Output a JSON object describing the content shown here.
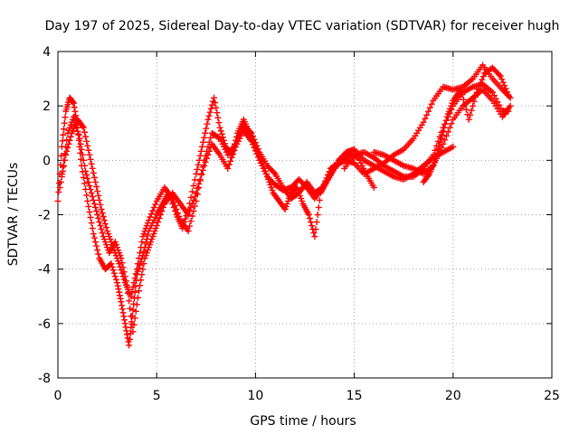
{
  "chart_data": {
    "type": "scatter",
    "title": "Day 197 of 2025, Sidereal Day-to-day VTEC variation (SDTVAR) for receiver hugh",
    "xlabel": "GPS time / hours",
    "ylabel": "SDTVAR / TECUs",
    "xlim": [
      0,
      25
    ],
    "ylim": [
      -8,
      4
    ],
    "xticks": [
      0,
      5,
      10,
      15,
      20,
      25
    ],
    "yticks": [
      -8,
      -6,
      -4,
      -2,
      0,
      2,
      4
    ],
    "xtick_labels": [
      "0",
      "5",
      "10",
      "15",
      "20",
      "25"
    ],
    "ytick_labels": [
      "-8",
      "-6",
      "-4",
      "-2",
      "0",
      "2",
      "4"
    ],
    "grid": true,
    "marker": "+",
    "color": "#ff0000",
    "series": [
      {
        "name": "track-1",
        "x": [
          0.0,
          0.2,
          0.4,
          0.6,
          0.8,
          1.0,
          1.2,
          1.5,
          1.8,
          2.1,
          2.4,
          2.7,
          3.0,
          3.2,
          3.4,
          3.6,
          3.8,
          4.0,
          4.3,
          4.6,
          5.0,
          5.3,
          5.6,
          6.0,
          6.3,
          6.6,
          7.0,
          7.3,
          7.6,
          7.9,
          8.2,
          8.5,
          8.8,
          9.1,
          9.4,
          9.7,
          10.0,
          10.3,
          10.6,
          10.9,
          11.2,
          11.5,
          11.8,
          12.1,
          12.4,
          12.7,
          13.0,
          13.3,
          13.6,
          14.0,
          14.4,
          14.8,
          15.2,
          15.6,
          16.0
        ],
        "y": [
          -1.5,
          0.5,
          1.8,
          2.3,
          2.1,
          1.2,
          -0.2,
          -1.5,
          -2.7,
          -3.6,
          -4.0,
          -3.8,
          -4.5,
          -5.2,
          -6.0,
          -6.8,
          -5.5,
          -4.2,
          -3.5,
          -2.6,
          -2.0,
          -1.6,
          -1.2,
          -2.0,
          -2.5,
          -1.8,
          -0.5,
          0.5,
          1.5,
          2.3,
          1.2,
          0.5,
          0.2,
          1.0,
          1.5,
          1.0,
          0.5,
          0.0,
          -0.6,
          -1.2,
          -1.5,
          -1.8,
          -1.2,
          -1.0,
          -1.6,
          -2.0,
          -2.8,
          -1.2,
          -0.8,
          -0.3,
          0.0,
          0.2,
          0.1,
          -0.5,
          -1.0
        ]
      },
      {
        "name": "track-2",
        "x": [
          0.1,
          0.4,
          0.7,
          1.0,
          1.3,
          1.6,
          1.9,
          2.2,
          2.5,
          2.8,
          3.1,
          3.4,
          3.7,
          4.0,
          4.3,
          4.6,
          5.0,
          5.4,
          5.8,
          6.2,
          6.6,
          7.0,
          7.4,
          7.8,
          8.2,
          8.6,
          9.0,
          9.4,
          9.8,
          10.2,
          10.6,
          11.0,
          11.4,
          11.8,
          12.2,
          12.6,
          13.0,
          13.4,
          13.8,
          14.2,
          14.6,
          15.0,
          15.5,
          16.0,
          16.5,
          17.0,
          17.5,
          18.0,
          18.5,
          19.0,
          19.5,
          20.0
        ],
        "y": [
          -1.0,
          0.2,
          1.0,
          1.5,
          1.2,
          0.2,
          -0.8,
          -1.8,
          -2.6,
          -3.2,
          -3.8,
          -4.5,
          -5.0,
          -4.0,
          -2.8,
          -2.2,
          -1.5,
          -1.0,
          -1.4,
          -2.2,
          -2.6,
          -1.5,
          0.0,
          1.0,
          0.8,
          0.2,
          0.6,
          1.3,
          1.0,
          0.3,
          -0.2,
          -0.5,
          -1.0,
          -1.4,
          -1.2,
          -0.8,
          -1.2,
          -1.0,
          -0.5,
          0.0,
          0.3,
          0.4,
          0.0,
          -0.2,
          -0.4,
          -0.6,
          -0.7,
          -0.5,
          -0.2,
          0.1,
          0.3,
          0.5
        ]
      },
      {
        "name": "track-3",
        "x": [
          0.2,
          0.5,
          0.8,
          1.1,
          1.4,
          1.7,
          2.0,
          2.3,
          2.6,
          2.9,
          3.2,
          3.5,
          3.8,
          4.1,
          4.4,
          4.7,
          5.0,
          5.4,
          5.8,
          6.2,
          6.6,
          7.0,
          7.4,
          7.8,
          8.2,
          8.6,
          9.0,
          9.4,
          9.8,
          10.2,
          10.6,
          11.0,
          11.4,
          11.8,
          12.2,
          12.6,
          13.0,
          13.4,
          13.8,
          14.2,
          14.6,
          15.0,
          15.5,
          16.0,
          16.5,
          17.0,
          17.5,
          18.0,
          18.5,
          19.0,
          19.5,
          20.0,
          20.5,
          21.0,
          21.5,
          22.0,
          22.5,
          22.9
        ],
        "y": [
          -0.5,
          1.0,
          1.6,
          0.8,
          -0.4,
          -1.2,
          -2.0,
          -2.8,
          -3.4,
          -3.0,
          -3.6,
          -4.6,
          -6.3,
          -4.8,
          -3.6,
          -3.0,
          -2.4,
          -1.6,
          -1.2,
          -1.6,
          -2.0,
          -1.2,
          -0.2,
          0.6,
          0.2,
          -0.3,
          0.5,
          1.1,
          0.7,
          0.0,
          -0.6,
          -0.9,
          -1.1,
          -1.0,
          -0.7,
          -1.0,
          -1.4,
          -1.0,
          -0.3,
          -0.1,
          0.0,
          -0.1,
          -0.5,
          -0.3,
          -0.1,
          0.2,
          0.4,
          0.8,
          1.4,
          2.2,
          2.7,
          2.6,
          2.7,
          3.0,
          3.5,
          3.0,
          2.6,
          2.3
        ]
      },
      {
        "name": "track-4",
        "x": [
          14.5,
          15.0,
          15.5,
          16.0,
          16.5,
          17.0,
          17.5,
          18.0,
          18.5,
          19.0,
          19.5,
          20.0,
          20.5,
          21.0,
          21.5,
          22.0,
          22.5,
          22.8
        ],
        "y": [
          -0.3,
          0.2,
          0.3,
          0.1,
          -0.2,
          -0.4,
          -0.6,
          -0.6,
          -0.3,
          0.2,
          1.2,
          2.0,
          2.5,
          2.7,
          2.8,
          2.5,
          1.8,
          1.8
        ]
      },
      {
        "name": "track-5",
        "x": [
          16.0,
          16.5,
          17.0,
          17.5,
          18.0,
          18.5,
          19.0,
          19.5,
          20.0,
          20.5,
          21.0,
          21.5,
          22.0,
          22.5,
          22.9
        ],
        "y": [
          0.3,
          0.2,
          0.0,
          -0.2,
          -0.3,
          -0.5,
          -0.2,
          0.6,
          1.5,
          2.0,
          2.3,
          2.6,
          2.2,
          1.6,
          2.0
        ]
      },
      {
        "name": "track-6",
        "x": [
          18.5,
          18.8,
          19.1,
          19.4,
          19.7,
          20.0,
          20.4,
          20.8,
          21.2,
          21.6,
          22.0,
          22.4,
          22.8
        ],
        "y": [
          -0.8,
          -0.5,
          0.0,
          0.8,
          1.6,
          2.2,
          2.6,
          1.5,
          2.5,
          3.2,
          3.4,
          3.1,
          2.4
        ]
      }
    ]
  }
}
